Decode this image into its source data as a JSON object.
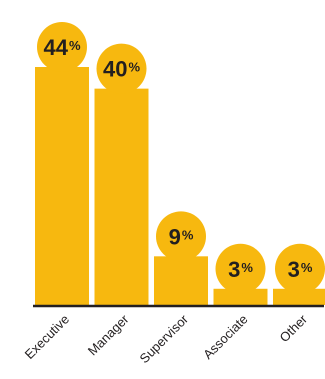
{
  "colors": {
    "bar": "#F7B80F",
    "text": "#231F20"
  },
  "chart_data": {
    "type": "bar",
    "categories": [
      "Executive",
      "Manager",
      "Supervisor",
      "Associate",
      "Other"
    ],
    "values": [
      44,
      40,
      9,
      3,
      3
    ],
    "value_suffix": "%",
    "ylim": [
      0,
      44
    ],
    "grid": false,
    "legend": "none",
    "title": "",
    "xlabel": "",
    "ylabel": ""
  }
}
